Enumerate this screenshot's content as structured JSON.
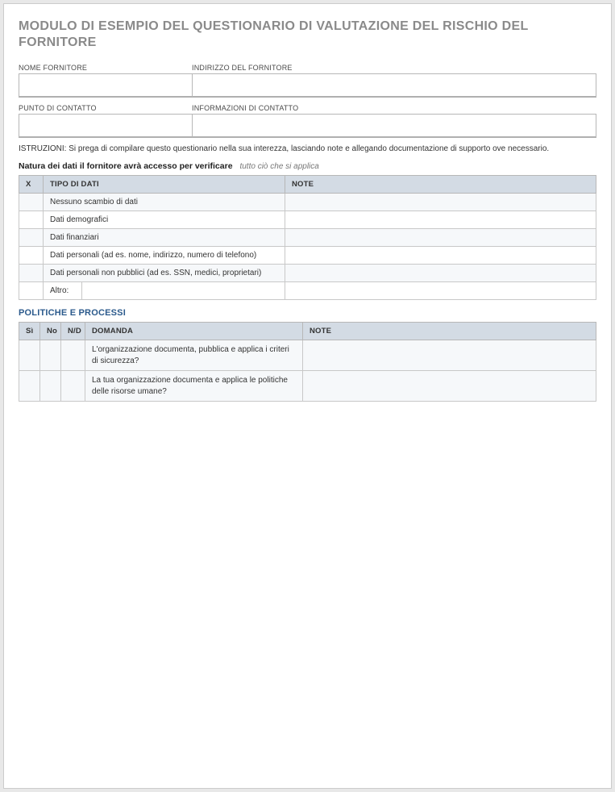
{
  "title": "MODULO DI ESEMPIO DEL QUESTIONARIO DI VALUTAZIONE DEL RISCHIO DEL FORNITORE",
  "fields": {
    "vendor_name_label": "NOME FORNITORE",
    "vendor_address_label": "INDIRIZZO DEL FORNITORE",
    "contact_point_label": "PUNTO DI CONTATTO",
    "contact_info_label": "INFORMAZIONI DI CONTATTO"
  },
  "instructions": "ISTRUZIONI: Si prega di compilare questo questionario nella sua interezza, lasciando note e allegando documentazione di supporto ove necessario.",
  "data_section": {
    "label": "Natura dei dati il fornitore avrà accesso per verificare",
    "hint": "tutto ciò che si applica",
    "headers": {
      "x": "X",
      "type": "TIPO DI DATI",
      "note": "NOTE"
    },
    "rows": [
      {
        "type": "Nessuno scambio di dati",
        "note": ""
      },
      {
        "type": "Dati demografici",
        "note": ""
      },
      {
        "type": "Dati finanziari",
        "note": ""
      },
      {
        "type": "Dati personali (ad es. nome, indirizzo, numero di telefono)",
        "note": ""
      },
      {
        "type": "Dati personali non pubblici (ad es. SSN, medici, proprietari)",
        "note": ""
      }
    ],
    "altro_label": "Altro:",
    "altro_value": "",
    "altro_note": ""
  },
  "policies_section": {
    "header": "POLITICHE E PROCESSI",
    "headers": {
      "si": "Sì",
      "no": "No",
      "nd": "N/D",
      "domanda": "DOMANDA",
      "note": "NOTE"
    },
    "rows": [
      {
        "q": "L'organizzazione documenta, pubblica e applica i criteri di sicurezza?",
        "note": ""
      },
      {
        "q": "La tua organizzazione documenta e applica le politiche delle risorse umane?",
        "note": ""
      }
    ]
  },
  "colors": {
    "title_color": "#8a8a8a",
    "header_bg": "#d3dbe4",
    "alt_row_bg": "#f6f8fa",
    "section_header_color": "#2b5a8c",
    "border_color": "#b7b7b7"
  }
}
